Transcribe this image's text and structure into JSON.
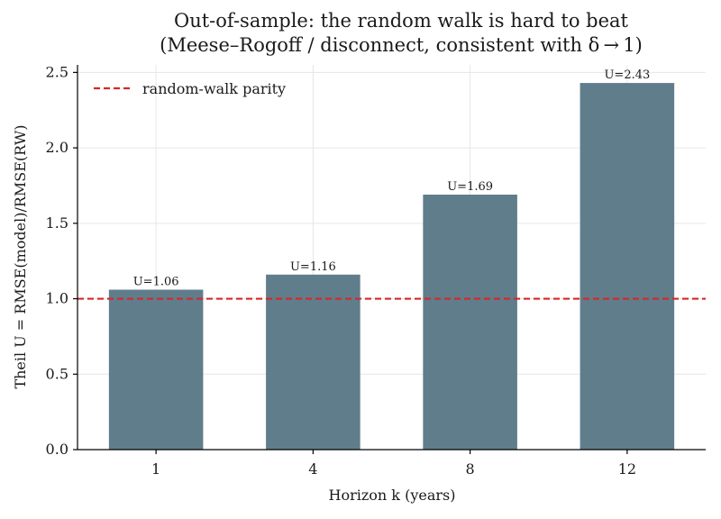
{
  "chart_data": {
    "type": "bar",
    "title_line1": "Out-of-sample: the random walk is hard to beat",
    "title_line2": "(Meese–Rogoff / disconnect, consistent with δ → 1)",
    "xlabel": "Horizon k (years)",
    "ylabel": "Theil U = RMSE(model)/RMSE(RW)",
    "categories": [
      "1",
      "4",
      "8",
      "12"
    ],
    "values": [
      1.06,
      1.16,
      1.69,
      2.43
    ],
    "data_labels": [
      "U=1.06",
      "U=1.16",
      "U=1.69",
      "U=2.43"
    ],
    "ylim": [
      0,
      2.55
    ],
    "yticks": [
      0.0,
      0.5,
      1.0,
      1.5,
      2.0,
      2.5
    ],
    "ytick_labels": [
      "0.0",
      "0.5",
      "1.0",
      "1.5",
      "2.0",
      "2.5"
    ],
    "reference_line": {
      "y": 1.0,
      "label": "random-walk parity",
      "style": "dashed"
    },
    "legend_placement": "top-left",
    "grid": true,
    "colors": {
      "bar": "#607d8b",
      "reference": "#d62728"
    }
  }
}
